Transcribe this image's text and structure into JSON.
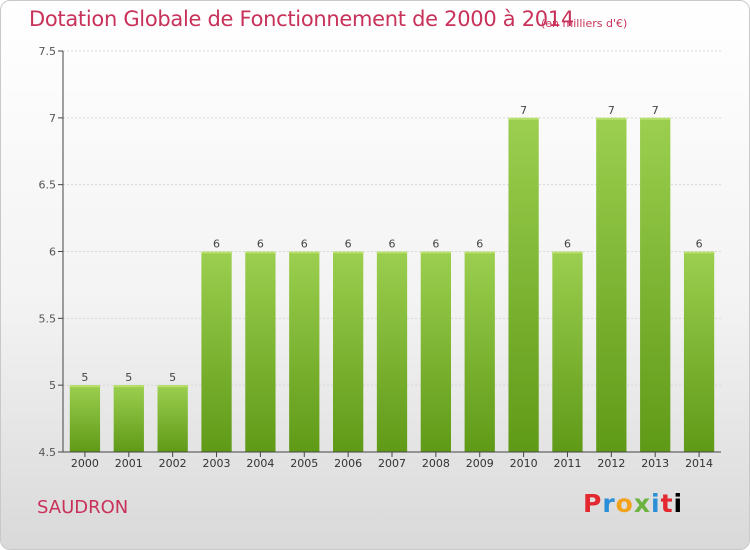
{
  "title": "Dotation Globale de Fonctionnement de 2000 à 2014",
  "subtitle": "(en milliers d'€)",
  "city": "SAUDRON",
  "logo": [
    "P",
    "r",
    "o",
    "x",
    "i",
    "t",
    "i"
  ],
  "colors": {
    "title": "#c8325a",
    "bar_top": "#9ccf4f",
    "bar_bottom": "#5f9a17"
  },
  "chart_data": {
    "type": "bar",
    "categories": [
      "2000",
      "2001",
      "2002",
      "2003",
      "2004",
      "2005",
      "2006",
      "2007",
      "2008",
      "2009",
      "2010",
      "2011",
      "2012",
      "2013",
      "2014"
    ],
    "values": [
      5,
      5,
      5,
      6,
      6,
      6,
      6,
      6,
      6,
      6,
      7,
      6,
      7,
      7,
      6
    ],
    "value_labels": [
      "5",
      "5",
      "5",
      "6",
      "6",
      "6",
      "6",
      "6",
      "6",
      "6",
      "7",
      "6",
      "7",
      "7",
      "6"
    ],
    "ylim": [
      4.5,
      7.5
    ],
    "yticks": [
      4.5,
      5,
      5.5,
      6,
      6.5,
      7,
      7.5
    ],
    "ytick_labels": [
      "4.5",
      "5",
      "5.5",
      "6",
      "6.5",
      "7",
      "7.5"
    ],
    "grid": true
  }
}
